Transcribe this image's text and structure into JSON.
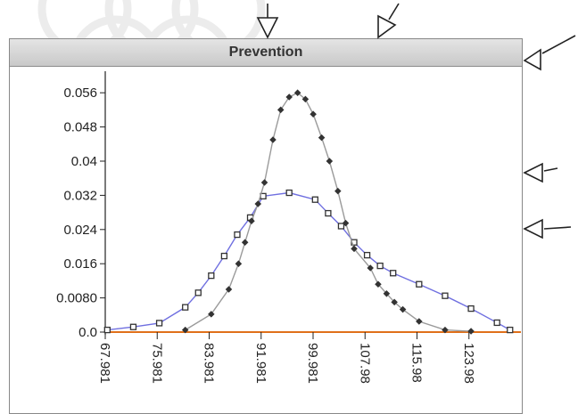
{
  "panel": {
    "title": "Prevention"
  },
  "colors": {
    "series_squares_line": "#6f6fe0",
    "series_diamonds_line": "#9a9a9a",
    "baseline": "#e0701a",
    "marker_dark": "#333333",
    "header_bg": "#d4d4d4"
  },
  "icons": [
    "arrow-down-icon",
    "arrow-diagonal-icon",
    "arrow-left-icon"
  ],
  "chart_data": {
    "type": "line",
    "title": "Prevention",
    "xlabel": "",
    "ylabel": "",
    "xlim": [
      67.981,
      131.981
    ],
    "ylim": [
      0,
      0.06
    ],
    "y_ticks": [
      {
        "value": 0.0,
        "label": "0.0"
      },
      {
        "value": 0.008,
        "label": "0.0080"
      },
      {
        "value": 0.016,
        "label": "0.016"
      },
      {
        "value": 0.024,
        "label": "0.024"
      },
      {
        "value": 0.032,
        "label": "0.032"
      },
      {
        "value": 0.04,
        "label": "0.04"
      },
      {
        "value": 0.048,
        "label": "0.048"
      },
      {
        "value": 0.056,
        "label": "0.056"
      }
    ],
    "x_ticks": [
      {
        "value": 67.981,
        "label": "67.981"
      },
      {
        "value": 75.981,
        "label": "75.981"
      },
      {
        "value": 83.981,
        "label": "83.981"
      },
      {
        "value": 91.981,
        "label": "91.981"
      },
      {
        "value": 99.981,
        "label": "99.981"
      },
      {
        "value": 107.981,
        "label": "107.98"
      },
      {
        "value": 115.981,
        "label": "115.98"
      },
      {
        "value": 123.981,
        "label": "123.98"
      }
    ],
    "grid": false,
    "series": [
      {
        "marker": "square",
        "color": "#6f6fe0",
        "points": [
          [
            68.3,
            0.0005
          ],
          [
            72.3,
            0.0012
          ],
          [
            76.3,
            0.0021
          ],
          [
            80.3,
            0.0058
          ],
          [
            82.3,
            0.0092
          ],
          [
            84.3,
            0.0132
          ],
          [
            86.3,
            0.0178
          ],
          [
            88.3,
            0.0228
          ],
          [
            90.3,
            0.0268
          ],
          [
            92.3,
            0.0318
          ],
          [
            96.3,
            0.0326
          ],
          [
            100.3,
            0.031
          ],
          [
            102.3,
            0.0278
          ],
          [
            104.3,
            0.0248
          ],
          [
            106.3,
            0.021
          ],
          [
            108.3,
            0.018
          ],
          [
            110.3,
            0.0155
          ],
          [
            112.3,
            0.0138
          ],
          [
            116.3,
            0.0112
          ],
          [
            120.3,
            0.0085
          ],
          [
            124.3,
            0.0055
          ],
          [
            128.3,
            0.0022
          ],
          [
            130.3,
            0.0005
          ]
        ]
      },
      {
        "marker": "diamond",
        "color": "#9a9a9a",
        "points": [
          [
            80.3,
            0.0005
          ],
          [
            84.3,
            0.0042
          ],
          [
            87.0,
            0.01
          ],
          [
            88.5,
            0.016
          ],
          [
            89.5,
            0.021
          ],
          [
            90.5,
            0.026
          ],
          [
            91.5,
            0.03
          ],
          [
            92.5,
            0.035
          ],
          [
            93.8,
            0.045
          ],
          [
            95.0,
            0.052
          ],
          [
            96.3,
            0.055
          ],
          [
            97.6,
            0.056
          ],
          [
            98.8,
            0.0545
          ],
          [
            100.0,
            0.051
          ],
          [
            101.3,
            0.0455
          ],
          [
            102.5,
            0.04
          ],
          [
            103.8,
            0.033
          ],
          [
            105.0,
            0.0255
          ],
          [
            106.3,
            0.0195
          ],
          [
            108.8,
            0.015
          ],
          [
            110.0,
            0.0112
          ],
          [
            111.3,
            0.009
          ],
          [
            112.5,
            0.007
          ],
          [
            113.8,
            0.0053
          ],
          [
            116.3,
            0.0025
          ],
          [
            120.3,
            0.0005
          ],
          [
            124.3,
            0.0002
          ]
        ]
      }
    ]
  }
}
